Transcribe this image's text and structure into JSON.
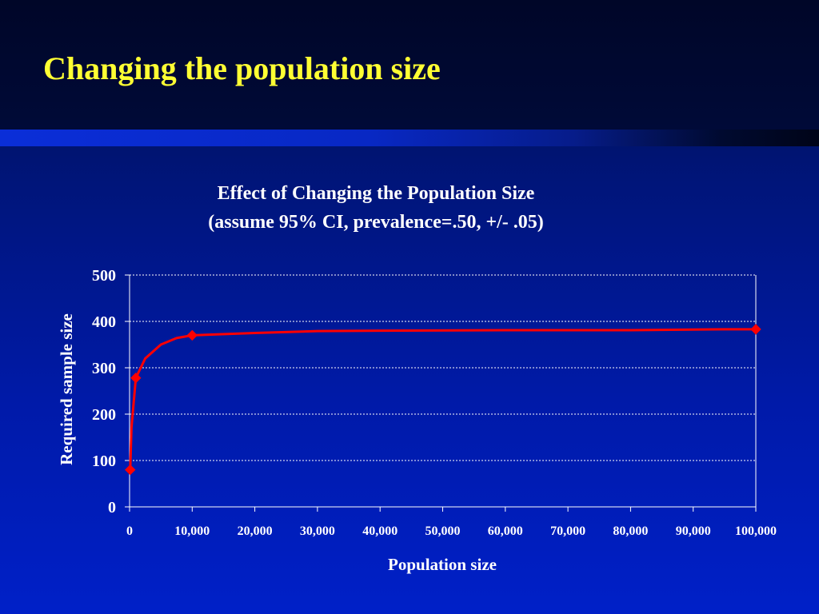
{
  "slide": {
    "title": "Changing the population size"
  },
  "colors": {
    "title_text": "#ffff33",
    "series": "#ff0000",
    "axis_text": "#ffffff",
    "grid": "#ffffff"
  },
  "chart_data": {
    "type": "line",
    "title_line1": "Effect of Changing the Population Size",
    "title_line2": "(assume 95% CI, prevalence=.50, +/- .05)",
    "xlabel": "Population size",
    "ylabel": "Required sample size",
    "xlim": [
      0,
      100000
    ],
    "ylim": [
      0,
      500
    ],
    "x_ticks": [
      0,
      10000,
      20000,
      30000,
      40000,
      50000,
      60000,
      70000,
      80000,
      90000,
      100000
    ],
    "x_tick_labels": [
      "0",
      "10,000",
      "20,000",
      "30,000",
      "40,000",
      "50,000",
      "60,000",
      "70,000",
      "80,000",
      "90,000",
      "100,000"
    ],
    "y_ticks": [
      0,
      100,
      200,
      300,
      400,
      500
    ],
    "y_tick_labels": [
      "0",
      "100",
      "200",
      "300",
      "400",
      "500"
    ],
    "grid": "horizontal dotted",
    "legend": "none",
    "series": [
      {
        "x": [
          100,
          1000,
          10000,
          100000
        ],
        "y": [
          80,
          278,
          370,
          383
        ],
        "curve": [
          [
            100,
            80
          ],
          [
            300,
            170
          ],
          [
            1000,
            278
          ],
          [
            2500,
            320
          ],
          [
            5000,
            350
          ],
          [
            7500,
            364
          ],
          [
            10000,
            370
          ],
          [
            20000,
            375
          ],
          [
            30000,
            379
          ],
          [
            40000,
            380
          ],
          [
            60000,
            381
          ],
          [
            80000,
            381
          ],
          [
            95000,
            383
          ],
          [
            100000,
            383
          ]
        ]
      }
    ]
  }
}
